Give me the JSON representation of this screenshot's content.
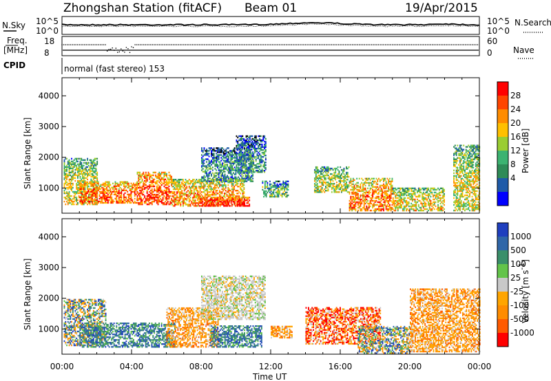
{
  "header": {
    "station": "Zhongshan Station (fitACF)",
    "beam": "Beam 01",
    "date": "19/Apr/2015"
  },
  "noise_panel": {
    "left_label": "N.Sky",
    "right_label": "N.Search",
    "left_ticks": [
      "10^5",
      "10^0"
    ],
    "right_ticks": [
      "10^5",
      "10^0"
    ]
  },
  "freq_panel": {
    "left_label_1": "Freq.",
    "left_label_2": "[MHz]",
    "left_ticks": [
      "18",
      "8"
    ],
    "right_label": "Nave",
    "right_ticks": [
      "60",
      "0"
    ]
  },
  "cpid_panel": {
    "label": "CPID",
    "mode_text": "normal (fast stereo) 153"
  },
  "chart_data": [
    {
      "type": "heatmap",
      "quantity": "Power",
      "ylabel": "Slant Range [km]",
      "colorbar_label": "Power [dB]",
      "xlabel": "Time UT",
      "xlim_hours": [
        0,
        24
      ],
      "ylim_km": [
        180,
        4590
      ],
      "y_ticks": [
        "1000",
        "2000",
        "3000",
        "4000"
      ],
      "x_ticks": [
        "00:00",
        "04:00",
        "08:00",
        "12:00",
        "16:00",
        "20:00",
        "00:00"
      ],
      "colorbar_ticks": [
        "28",
        "24",
        "20",
        "16",
        "12",
        "8",
        "4"
      ],
      "colorbar_colors": [
        "#ff0000",
        "#ff4500",
        "#ff8c00",
        "#ffc000",
        "#9acd32",
        "#3cb371",
        "#2e8b57",
        "#1e5aa8",
        "#0000ff"
      ],
      "echo_regions": [
        {
          "t0": 0.1,
          "t1": 2.0,
          "r0": 450,
          "r1": 1950,
          "intensity": 0.55
        },
        {
          "t0": 1.0,
          "t1": 4.3,
          "r0": 500,
          "r1": 1200,
          "intensity": 0.8
        },
        {
          "t0": 4.3,
          "t1": 6.3,
          "r0": 450,
          "r1": 1500,
          "intensity": 0.85
        },
        {
          "t0": 6.3,
          "t1": 10.5,
          "r0": 400,
          "r1": 1300,
          "intensity": 0.7
        },
        {
          "t0": 7.8,
          "t1": 10.8,
          "r0": 400,
          "r1": 700,
          "intensity": 0.95
        },
        {
          "t0": 8.0,
          "t1": 11.0,
          "r0": 1200,
          "r1": 2300,
          "intensity": 0.3
        },
        {
          "t0": 10.0,
          "t1": 11.7,
          "r0": 1500,
          "r1": 2700,
          "intensity": 0.3
        },
        {
          "t0": 11.5,
          "t1": 13.0,
          "r0": 700,
          "r1": 1200,
          "intensity": 0.4
        },
        {
          "t0": 14.5,
          "t1": 16.5,
          "r0": 850,
          "r1": 1700,
          "intensity": 0.5
        },
        {
          "t0": 16.5,
          "t1": 19.0,
          "r0": 250,
          "r1": 1300,
          "intensity": 0.75
        },
        {
          "t0": 19.0,
          "t1": 22.0,
          "r0": 250,
          "r1": 1000,
          "intensity": 0.6
        },
        {
          "t0": 22.5,
          "t1": 24.0,
          "r0": 250,
          "r1": 2400,
          "intensity": 0.55
        }
      ]
    },
    {
      "type": "heatmap",
      "quantity": "Velocity",
      "ylabel": "Slant Range [km]",
      "colorbar_label": "Velocity [m s",
      "colorbar_label_superscript": "-1",
      "colorbar_label_close": "]",
      "xlabel": "Time UT",
      "xlim_hours": [
        0,
        24
      ],
      "ylim_km": [
        180,
        4590
      ],
      "y_ticks": [
        "1000",
        "2000",
        "3000",
        "4000"
      ],
      "x_ticks": [
        "00:00",
        "04:00",
        "08:00",
        "12:00",
        "16:00",
        "20:00",
        "00:00"
      ],
      "colorbar_ticks": [
        "1000",
        "500",
        "100",
        "25",
        "-25",
        "-100",
        "-500",
        "-1000"
      ],
      "colorbar_colors": [
        "#1f3fbf",
        "#2f66a8",
        "#3a8f6a",
        "#63c44a",
        "#c8c8c8",
        "#ffa500",
        "#ff8c00",
        "#ff5a00",
        "#ff0000"
      ],
      "echo_regions": [
        {
          "t0": 0.1,
          "t1": 2.5,
          "r0": 450,
          "r1": 1950,
          "kind": "mixed"
        },
        {
          "t0": 1.0,
          "t1": 6.5,
          "r0": 400,
          "r1": 1200,
          "kind": "blue"
        },
        {
          "t0": 6.0,
          "t1": 9.0,
          "r0": 400,
          "r1": 1700,
          "kind": "orange"
        },
        {
          "t0": 8.5,
          "t1": 11.5,
          "r0": 400,
          "r1": 1100,
          "kind": "blue"
        },
        {
          "t0": 8.0,
          "t1": 11.7,
          "r0": 1300,
          "r1": 2700,
          "kind": "grey"
        },
        {
          "t0": 12.0,
          "t1": 13.2,
          "r0": 700,
          "r1": 1100,
          "kind": "orange"
        },
        {
          "t0": 14.0,
          "t1": 18.3,
          "r0": 500,
          "r1": 1700,
          "kind": "red"
        },
        {
          "t0": 17.0,
          "t1": 20.0,
          "r0": 200,
          "r1": 1100,
          "kind": "mixed"
        },
        {
          "t0": 20.0,
          "t1": 24.0,
          "r0": 250,
          "r1": 2300,
          "kind": "orange"
        }
      ]
    }
  ]
}
